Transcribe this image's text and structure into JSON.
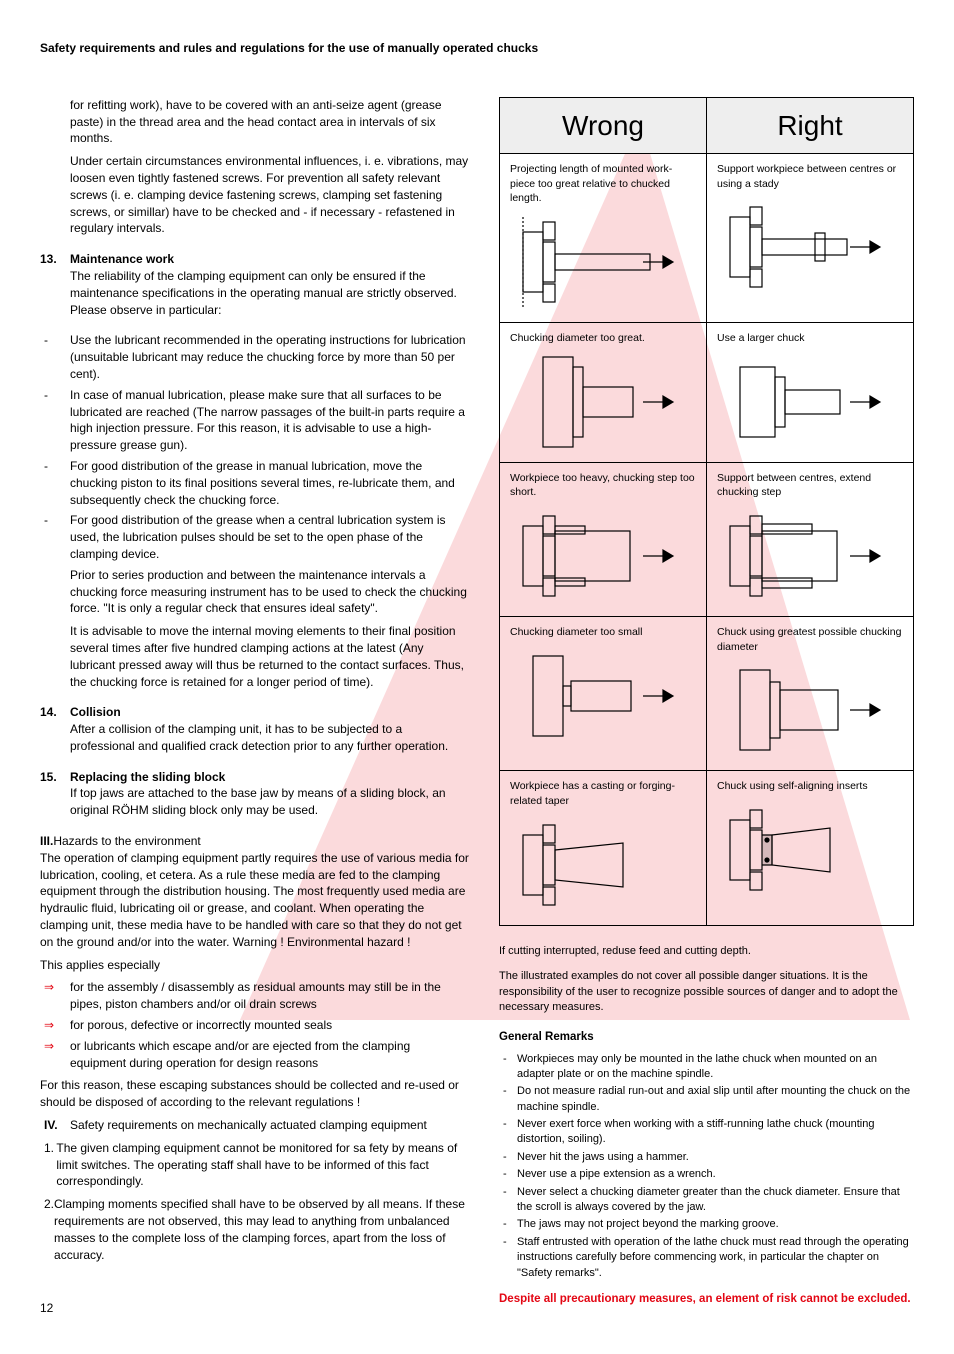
{
  "header": "Safety requirements and rules and regulations for the use of manually operated chucks",
  "intro1": "for refitting work), have to be covered with an anti-seize agent (grease paste) in the thread area and the head contact area in intervals of six months.",
  "intro2": "Under certain circumstances environmental influences, i. e. vibrations, may loosen even tightly fastened screws. For prevention all safety relevant screws (i. e. clamping device fastening screws, clamping set fastening screws, or simillar) have to be checked and - if necessary - refastened in regulary intervals.",
  "s13": {
    "num": "13.",
    "title": "Maintenance work",
    "p1": "The reliability of the clamping equipment can only be ensured if the maintenance specifications in the operating manual are strictly observed. Please observe in particular:",
    "bullets": [
      "Use the lubricant recommended in the operating instructions for lubrication (unsuitable lubricant may reduce the chucking force by more than 50 per cent).",
      "In case of manual lubrication, please make sure that all surfaces to be lubricated are reached (The narrow passages of the built-in parts require a high injection pressure. For this reason, it is advisable to use a high-pressure grease gun).",
      "For good distribution of the grease in manual lubrication, move the chucking piston to its final positions several times, re-lubricate them, and subsequently check the chucking force.",
      "For good distribution of the grease when a central lubrication system is used, the lubrication pulses should be set to the open phase of the clamping device."
    ],
    "p2": "Prior to series production and between the maintenance intervals a chucking force measuring instrument has to be used to check the chucking force. \"It is only a regular check that ensures ideal safety\".",
    "p3": "It is advisable to move the internal moving elements to their final position several times after five hundred clamping actions at the latest (Any lubricant pressed away will thus be returned to the contact surfaces. Thus, the chucking force is retained for a longer period of time)."
  },
  "s14": {
    "num": "14.",
    "title": "Collision",
    "p1": "After a collision of the clamping unit, it has to be subjected to a professional and qualified crack detection prior to any further operation."
  },
  "s15": {
    "num": "15.",
    "title": "Replacing the sliding block",
    "p1": "If top jaws are attached to the base jaw by means of a sliding block, an original RÖHM sliding block only may be used."
  },
  "sIII": {
    "num": "III.",
    "title": "Hazards to the environment",
    "p1": "The operation of clamping equipment partly requires the use of various media for lubrication, cooling, et cetera. As a rule these media are fed to the clamping equipment through the distribution housing. The most frequently used media are hydraulic fluid, lubricating oil or grease, and coolant. When operating the clamping unit, these media have to be handled with care so that they do not get on the ground and/or into the water. Warning ! Environmental hazard !",
    "p2": "This applies especially",
    "arrows": [
      "for the assembly / disassembly as residual amounts may still be in the pipes, piston chambers and/or oil drain screws",
      "for porous, defective or incorrectly mounted seals",
      "or lubricants which escape and/or are ejected from the clamping equipment during operation for design reasons"
    ],
    "p3": "For this reason, these escaping substances should be collected and re-used or should be disposed of according to the relevant regulations !"
  },
  "sIV": {
    "num": "IV.",
    "title": "Safety requirements on mechanically actuated clamping equipment",
    "items": [
      {
        "n": "1.",
        "t": "The given clamping equipment cannot be monitored for sa fety by means of limit switches. The operating staff shall have to be informed of this fact correspondingly."
      },
      {
        "n": "2.",
        "t": "Clamping moments specified shall have to be observed by all means. If these requirements are not observed, this may lead to anything from unbalanced masses to the complete loss of the clamping forces, apart from the loss of accuracy."
      }
    ]
  },
  "table": {
    "headers": {
      "wrong": "Wrong",
      "right": "Right"
    },
    "rows": [
      {
        "wrong": "Projecting length of mounted work-piece too great relative to chucked length.",
        "right": "Support workpiece between centres or using a stady"
      },
      {
        "wrong": "Chucking diameter too great.",
        "right": "Use a larger chuck"
      },
      {
        "wrong": "Workpiece too heavy, chucking step too short.",
        "right": "Support between centres, extend chucking step"
      },
      {
        "wrong": "Chucking diameter too small",
        "right": "Chuck using greatest possible chucking diameter"
      },
      {
        "wrong": "Workpiece has a casting or forging-related taper",
        "right": "Chuck using self-aligning inserts"
      }
    ]
  },
  "bottom": {
    "p1": "If cutting interrupted, reduse feed and cutting depth.",
    "p2": "The illustrated examples do not cover all possible danger situations. It is the responsibility of the user to recognize possible sources of danger and to adopt the necessary measures.",
    "remarksTitle": "General Remarks",
    "remarks": [
      "Workpieces may only be mounted in the lathe chuck when mounted on an adapter plate or on the machine spindle.",
      "Do not measure radial run-out and axial slip until after mounting the chuck on the machine spindle.",
      "Never exert force when working with a stiff-running lathe chuck (mounting distortion, soiling).",
      "Never hit the jaws using a hammer.",
      "Never use a pipe extension as a wrench.",
      "Never select a chucking diameter greater than the chuck diameter. Ensure that the scroll is always covered by the jaw.",
      "The jaws may not project beyond the marking groove.",
      "Staff entrusted with operation of the lathe chuck must read through the operating instructions carefully before commencing work, in particular the chapter on \"Safety remarks\"."
    ],
    "warning": "Despite all precautionary measures, an element of risk cannot be excluded."
  },
  "pageNum": "12",
  "colors": {
    "red": "#e30613"
  }
}
